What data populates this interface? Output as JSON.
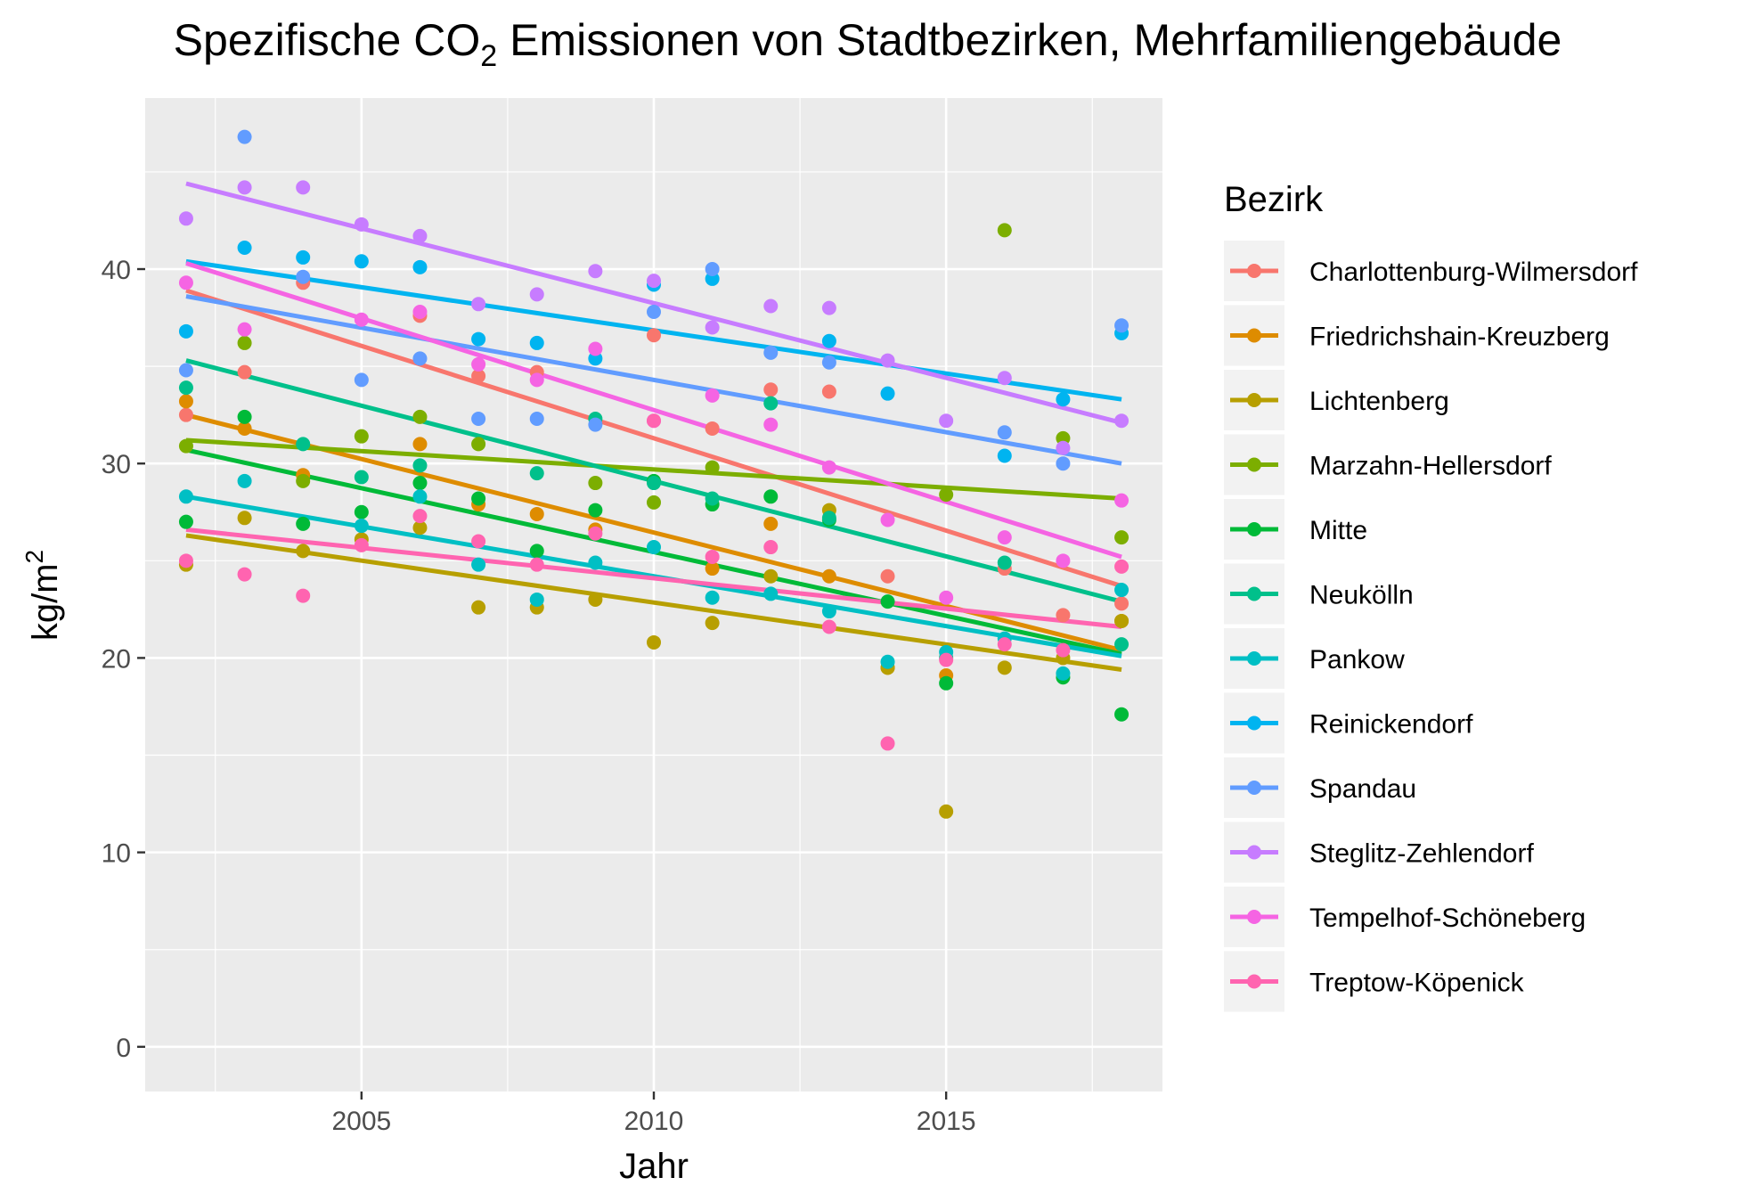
{
  "chart_data": {
    "type": "scatter",
    "title": {
      "prefix": "Spezifische CO",
      "subscript": "2",
      "suffix": " Emissionen von Stadtbezirken, Mehrfamiliengebäude"
    },
    "xlabel": "Jahr",
    "ylabel": {
      "base": "kg/m",
      "superscript": "2"
    },
    "xlim": [
      2001.3,
      2018.7
    ],
    "ylim": [
      -2.3,
      48.8
    ],
    "x_ticks": [
      2005,
      2010,
      2015
    ],
    "y_ticks": [
      0,
      10,
      20,
      30,
      40
    ],
    "grid": true,
    "legend": {
      "title": "Bezirk",
      "position": "right"
    },
    "series": [
      {
        "name": "Charlottenburg-Wilmersdorf",
        "color": "#F8766D",
        "x": [
          2002,
          2003,
          2004,
          2006,
          2007,
          2008,
          2010,
          2011,
          2012,
          2013,
          2014,
          2016,
          2017,
          2018
        ],
        "y": [
          32.5,
          34.7,
          39.3,
          37.6,
          34.5,
          34.7,
          36.6,
          31.8,
          33.8,
          33.7,
          24.2,
          24.6,
          22.2,
          22.8
        ],
        "fit": [
          38.9,
          23.7
        ]
      },
      {
        "name": "Friedrichshain-Kreuzberg",
        "color": "#DE8C00",
        "x": [
          2002,
          2003,
          2004,
          2006,
          2007,
          2008,
          2009,
          2011,
          2012,
          2013,
          2014,
          2015,
          2018
        ],
        "y": [
          33.2,
          31.8,
          29.4,
          31.0,
          27.9,
          27.4,
          26.6,
          24.6,
          26.9,
          24.2,
          19.5,
          19.1,
          21.9
        ],
        "fit": [
          32.5,
          20.4
        ]
      },
      {
        "name": "Lichtenberg",
        "color": "#B79F00",
        "x": [
          2002,
          2003,
          2004,
          2005,
          2006,
          2007,
          2008,
          2009,
          2010,
          2011,
          2012,
          2013,
          2014,
          2015,
          2016,
          2017,
          2018
        ],
        "y": [
          24.8,
          27.2,
          25.5,
          26.1,
          26.7,
          22.6,
          22.6,
          23.0,
          20.8,
          21.8,
          24.2,
          27.6,
          19.5,
          12.1,
          19.5,
          20.0,
          21.9
        ],
        "fit": [
          26.3,
          19.4
        ]
      },
      {
        "name": "Marzahn-Hellersdorf",
        "color": "#7CAE00",
        "x": [
          2002,
          2003,
          2004,
          2005,
          2006,
          2007,
          2009,
          2010,
          2011,
          2015,
          2016,
          2017,
          2018
        ],
        "y": [
          30.9,
          36.2,
          29.1,
          31.4,
          32.4,
          31.0,
          29.0,
          28.0,
          29.8,
          28.4,
          42.0,
          31.3,
          26.2
        ],
        "fit": [
          31.2,
          28.2
        ]
      },
      {
        "name": "Mitte",
        "color": "#00BA38",
        "x": [
          2002,
          2003,
          2004,
          2005,
          2006,
          2007,
          2008,
          2009,
          2010,
          2011,
          2012,
          2013,
          2014,
          2015,
          2017,
          2018
        ],
        "y": [
          27.0,
          32.4,
          26.9,
          27.5,
          29.0,
          28.2,
          25.5,
          27.6,
          29.1,
          27.9,
          28.3,
          27.1,
          22.9,
          18.7,
          19.0,
          17.1
        ],
        "fit": [
          30.7,
          20.2
        ]
      },
      {
        "name": "Neukölln",
        "color": "#00C08B",
        "x": [
          2002,
          2004,
          2005,
          2006,
          2008,
          2009,
          2010,
          2011,
          2012,
          2013,
          2015,
          2016,
          2018
        ],
        "y": [
          33.9,
          31.0,
          29.3,
          29.9,
          29.5,
          32.3,
          29.0,
          28.2,
          33.1,
          27.2,
          20.0,
          24.9,
          20.7
        ],
        "fit": [
          35.3,
          22.9
        ]
      },
      {
        "name": "Pankow",
        "color": "#00BFC4",
        "x": [
          2002,
          2003,
          2005,
          2006,
          2007,
          2008,
          2009,
          2010,
          2011,
          2012,
          2013,
          2014,
          2015,
          2016,
          2017,
          2018
        ],
        "y": [
          28.3,
          29.1,
          26.8,
          28.3,
          24.8,
          23.0,
          24.9,
          25.7,
          23.1,
          23.3,
          22.4,
          19.8,
          20.3,
          21.0,
          19.2,
          23.5
        ],
        "fit": [
          28.3,
          20.1
        ]
      },
      {
        "name": "Reinickendorf",
        "color": "#00B4F0",
        "x": [
          2002,
          2003,
          2004,
          2005,
          2006,
          2007,
          2008,
          2009,
          2010,
          2011,
          2013,
          2014,
          2016,
          2017,
          2018
        ],
        "y": [
          36.8,
          41.1,
          40.6,
          40.4,
          40.1,
          36.4,
          36.2,
          35.4,
          39.2,
          39.5,
          36.3,
          33.6,
          30.4,
          33.3,
          36.7
        ],
        "fit": [
          40.4,
          33.3
        ]
      },
      {
        "name": "Spandau",
        "color": "#619CFF",
        "x": [
          2002,
          2003,
          2004,
          2005,
          2006,
          2007,
          2008,
          2009,
          2010,
          2011,
          2012,
          2013,
          2016,
          2017,
          2018
        ],
        "y": [
          34.8,
          46.8,
          39.6,
          34.3,
          35.4,
          32.3,
          32.3,
          32.0,
          37.8,
          40.0,
          35.7,
          35.2,
          31.6,
          30.0,
          37.1
        ],
        "fit": [
          38.6,
          30.0
        ]
      },
      {
        "name": "Steglitz-Zehlendorf",
        "color": "#C77CFF",
        "x": [
          2002,
          2003,
          2004,
          2005,
          2006,
          2007,
          2008,
          2009,
          2010,
          2011,
          2012,
          2013,
          2014,
          2015,
          2016,
          2017,
          2018
        ],
        "y": [
          42.6,
          44.2,
          44.2,
          42.3,
          41.7,
          38.2,
          38.7,
          39.9,
          39.4,
          37.0,
          38.1,
          38.0,
          35.3,
          32.2,
          34.4,
          30.8,
          32.2
        ],
        "fit": [
          44.4,
          32.1
        ]
      },
      {
        "name": "Tempelhof-Schöneberg",
        "color": "#F564E3",
        "x": [
          2002,
          2003,
          2005,
          2006,
          2007,
          2008,
          2009,
          2010,
          2011,
          2012,
          2013,
          2014,
          2015,
          2016,
          2017,
          2018
        ],
        "y": [
          39.3,
          36.9,
          37.4,
          37.8,
          35.1,
          34.3,
          35.9,
          32.2,
          33.5,
          32.0,
          29.8,
          27.1,
          23.1,
          26.2,
          25.0,
          28.1
        ],
        "fit": [
          40.3,
          25.2
        ]
      },
      {
        "name": "Treptow-Köpenick",
        "color": "#FF64B0",
        "x": [
          2002,
          2003,
          2004,
          2005,
          2006,
          2007,
          2008,
          2009,
          2010,
          2011,
          2012,
          2013,
          2014,
          2015,
          2016,
          2017,
          2018
        ],
        "y": [
          25.0,
          24.3,
          23.2,
          25.8,
          27.3,
          26.0,
          24.8,
          26.4,
          32.2,
          25.2,
          25.7,
          21.6,
          15.6,
          19.9,
          20.7,
          20.4,
          24.7
        ],
        "fit": [
          26.6,
          21.6
        ]
      }
    ]
  }
}
